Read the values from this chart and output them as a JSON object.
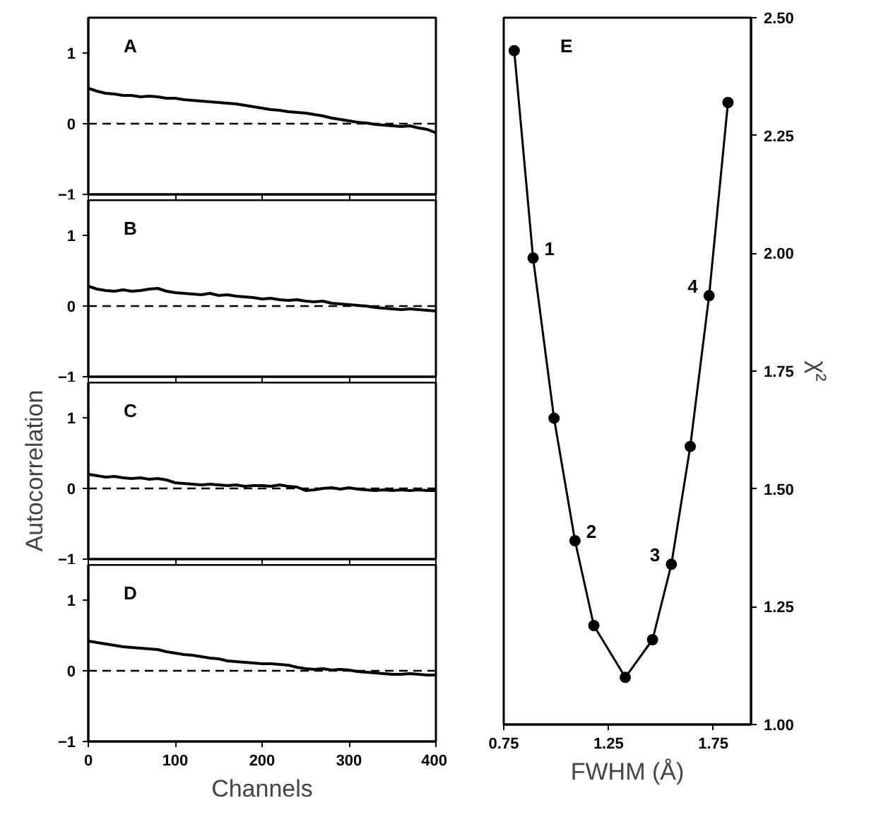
{
  "chart_data": [
    {
      "type": "line",
      "annotations": [
        "A"
      ],
      "x": [
        0,
        10,
        20,
        30,
        40,
        50,
        60,
        70,
        80,
        90,
        100,
        110,
        120,
        130,
        140,
        150,
        160,
        170,
        180,
        190,
        200,
        210,
        220,
        230,
        240,
        250,
        260,
        270,
        280,
        290,
        300,
        310,
        320,
        330,
        340,
        350,
        360,
        370,
        380,
        390,
        400
      ],
      "series": [
        {
          "color": "#000000",
          "values": [
            0.5,
            0.46,
            0.43,
            0.42,
            0.4,
            0.4,
            0.38,
            0.39,
            0.38,
            0.36,
            0.36,
            0.34,
            0.33,
            0.32,
            0.31,
            0.3,
            0.29,
            0.28,
            0.26,
            0.24,
            0.22,
            0.2,
            0.19,
            0.17,
            0.16,
            0.15,
            0.13,
            0.11,
            0.08,
            0.06,
            0.04,
            0.02,
            0.01,
            -0.01,
            -0.02,
            -0.03,
            -0.04,
            -0.03,
            -0.06,
            -0.08,
            -0.13
          ]
        }
      ],
      "xlim": [
        0,
        400
      ],
      "xticks": [
        0,
        100,
        200,
        300,
        400
      ],
      "ylim": [
        -1,
        1.5
      ],
      "yticks": [
        -1,
        0,
        1
      ],
      "tick_labels": "y",
      "ref_lines": [
        {
          "axis": "y",
          "value": 0,
          "color": "#000000",
          "line_style": "dashed"
        }
      ],
      "grid": false,
      "marker": "none",
      "line_style": "solid"
    },
    {
      "type": "line",
      "annotations": [
        "B"
      ],
      "x": [
        0,
        10,
        20,
        30,
        40,
        50,
        60,
        70,
        80,
        90,
        100,
        110,
        120,
        130,
        140,
        150,
        160,
        170,
        180,
        190,
        200,
        210,
        220,
        230,
        240,
        250,
        260,
        270,
        280,
        290,
        300,
        310,
        320,
        330,
        340,
        350,
        360,
        370,
        380,
        390,
        400
      ],
      "series": [
        {
          "color": "#000000",
          "values": [
            0.28,
            0.24,
            0.22,
            0.21,
            0.23,
            0.21,
            0.22,
            0.24,
            0.25,
            0.21,
            0.19,
            0.18,
            0.17,
            0.16,
            0.18,
            0.15,
            0.16,
            0.14,
            0.13,
            0.12,
            0.1,
            0.11,
            0.09,
            0.08,
            0.09,
            0.07,
            0.06,
            0.07,
            0.04,
            0.03,
            0.02,
            0.01,
            0.0,
            -0.02,
            -0.03,
            -0.04,
            -0.05,
            -0.04,
            -0.05,
            -0.06,
            -0.07
          ]
        }
      ],
      "xlim": [
        0,
        400
      ],
      "xticks": [
        0,
        100,
        200,
        300,
        400
      ],
      "ylim": [
        -1,
        1.5
      ],
      "yticks": [
        -1,
        0,
        1
      ],
      "tick_labels": "y",
      "ref_lines": [
        {
          "axis": "y",
          "value": 0,
          "color": "#000000",
          "line_style": "dashed"
        }
      ],
      "grid": false,
      "marker": "none",
      "line_style": "solid"
    },
    {
      "type": "line",
      "annotations": [
        "C"
      ],
      "ylabel": "Autocorrelation",
      "x": [
        0,
        10,
        20,
        30,
        40,
        50,
        60,
        70,
        80,
        90,
        100,
        110,
        120,
        130,
        140,
        150,
        160,
        170,
        180,
        190,
        200,
        210,
        220,
        230,
        240,
        250,
        260,
        270,
        280,
        290,
        300,
        310,
        320,
        330,
        340,
        350,
        360,
        370,
        380,
        390,
        400
      ],
      "series": [
        {
          "color": "#000000",
          "values": [
            0.2,
            0.18,
            0.16,
            0.17,
            0.15,
            0.14,
            0.15,
            0.13,
            0.14,
            0.12,
            0.08,
            0.07,
            0.06,
            0.05,
            0.06,
            0.05,
            0.04,
            0.05,
            0.03,
            0.04,
            0.04,
            0.03,
            0.05,
            0.03,
            0.02,
            -0.03,
            -0.02,
            0.0,
            0.01,
            -0.01,
            0.01,
            -0.01,
            -0.02,
            -0.03,
            -0.02,
            -0.03,
            -0.02,
            -0.03,
            -0.02,
            -0.03,
            -0.03
          ]
        }
      ],
      "xlim": [
        0,
        400
      ],
      "xticks": [
        0,
        100,
        200,
        300,
        400
      ],
      "ylim": [
        -1,
        1.5
      ],
      "yticks": [
        -1,
        0,
        1
      ],
      "tick_labels": "y",
      "ref_lines": [
        {
          "axis": "y",
          "value": 0,
          "color": "#000000",
          "line_style": "dashed"
        }
      ],
      "grid": false,
      "marker": "none",
      "line_style": "solid"
    },
    {
      "type": "line",
      "annotations": [
        "D"
      ],
      "xlabel": "Channels",
      "x": [
        0,
        10,
        20,
        30,
        40,
        50,
        60,
        70,
        80,
        90,
        100,
        110,
        120,
        130,
        140,
        150,
        160,
        170,
        180,
        190,
        200,
        210,
        220,
        230,
        240,
        250,
        260,
        270,
        280,
        290,
        300,
        310,
        320,
        330,
        340,
        350,
        360,
        370,
        380,
        390,
        400
      ],
      "series": [
        {
          "color": "#000000",
          "values": [
            0.42,
            0.4,
            0.38,
            0.36,
            0.34,
            0.33,
            0.32,
            0.31,
            0.3,
            0.27,
            0.25,
            0.23,
            0.22,
            0.2,
            0.18,
            0.17,
            0.14,
            0.13,
            0.12,
            0.11,
            0.1,
            0.1,
            0.09,
            0.08,
            0.05,
            0.03,
            0.02,
            0.03,
            0.01,
            0.02,
            0.01,
            -0.01,
            -0.02,
            -0.03,
            -0.04,
            -0.05,
            -0.05,
            -0.04,
            -0.05,
            -0.06,
            -0.06
          ]
        }
      ],
      "xlim": [
        0,
        400
      ],
      "xticks": [
        0,
        100,
        200,
        300,
        400
      ],
      "ylim": [
        -1,
        1.5
      ],
      "yticks": [
        -1,
        0,
        1
      ],
      "ref_lines": [
        {
          "axis": "y",
          "value": 0,
          "color": "#000000",
          "line_style": "dashed"
        }
      ],
      "grid": false,
      "marker": "none",
      "line_style": "solid"
    },
    {
      "type": "line",
      "xlabel": "FWHM (Å)",
      "ylabel": "χ²",
      "annotations": [
        "E",
        {
          "text": "1",
          "x": 0.89,
          "y": 1.99
        },
        {
          "text": "2",
          "x": 1.09,
          "y": 1.39
        },
        {
          "text": "3",
          "x": 1.55,
          "y": 1.34
        },
        {
          "text": "4",
          "x": 1.73,
          "y": 1.91
        }
      ],
      "x": [
        0.8,
        0.89,
        0.99,
        1.09,
        1.18,
        1.33,
        1.46,
        1.55,
        1.64,
        1.73,
        1.82
      ],
      "series": [
        {
          "color": "#000000",
          "values": [
            2.43,
            1.99,
            1.65,
            1.39,
            1.21,
            1.1,
            1.18,
            1.34,
            1.59,
            1.91,
            2.32
          ]
        }
      ],
      "xlim": [
        0.75,
        1.93
      ],
      "xticks": [
        0.75,
        1.25,
        1.75
      ],
      "ylim": [
        1.0,
        2.5
      ],
      "yticks": [
        {
          "value": 1.0,
          "label": "1.00"
        },
        {
          "value": 1.25,
          "label": "1.25"
        },
        {
          "value": 1.5,
          "label": "1.50"
        },
        {
          "value": 1.75,
          "label": "1.75"
        },
        {
          "value": 2.0,
          "label": "2.00"
        },
        {
          "value": 2.25,
          "label": "2.25"
        },
        {
          "value": 2.5,
          "label": "2.50"
        }
      ],
      "grid": false,
      "marker": "circle",
      "line_style": "solid"
    }
  ]
}
